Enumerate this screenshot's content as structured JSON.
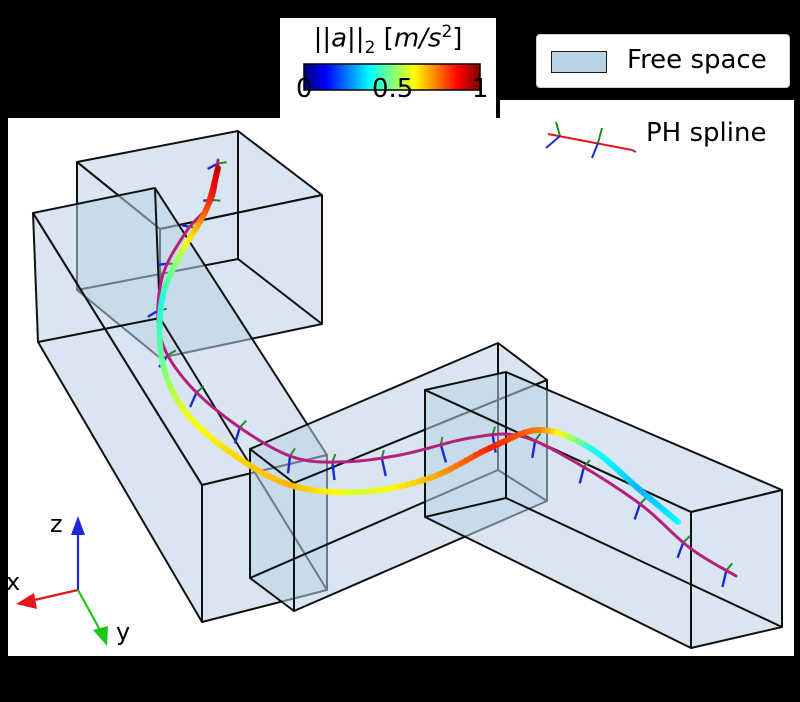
{
  "colorbar": {
    "title": "||a||₂ [m/s²]",
    "title_parts": {
      "bars_open": "||",
      "var": "a",
      "bars_close": "||",
      "sub": "2",
      "unit_open": " [",
      "unit": "m/s",
      "sup": "2",
      "unit_close": "]"
    },
    "ticks": [
      "0",
      "0.5",
      "1"
    ],
    "colormap": "jet"
  },
  "legend": {
    "free_space": {
      "label": "Free space",
      "color": "#b9d2e6"
    },
    "ph_spline": {
      "label": "PH spline"
    }
  },
  "axes": {
    "x_label": "x",
    "y_label": "y",
    "z_label": "z",
    "x_color": "#e8151b",
    "y_color": "#1ac81a",
    "z_color": "#1c28d6"
  },
  "colors": {
    "free_space_fill": "#b9d2e6",
    "box_edge": "#111111",
    "spline_line": "#b5207a",
    "normal_tick": "#1c28d6",
    "binormal_tick": "#1f8c2a",
    "background": "#000000"
  }
}
